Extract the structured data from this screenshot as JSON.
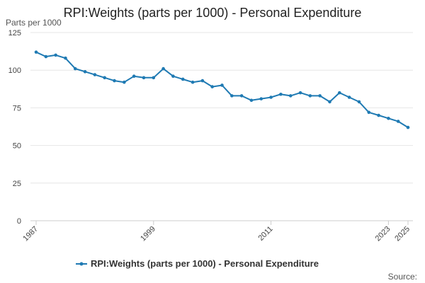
{
  "chart_data": {
    "type": "line",
    "title": "RPI:Weights (parts per 1000) - Personal Expenditure",
    "xlabel": "",
    "ylabel": "Parts per 1000",
    "ylim": [
      0,
      125
    ],
    "yticks": [
      0,
      25,
      50,
      75,
      100,
      125
    ],
    "xlim": [
      1987,
      2025
    ],
    "xticks": [
      1987,
      1999,
      2011,
      2023,
      2025
    ],
    "grid": true,
    "legend_position": "bottom",
    "source_label": "Source:",
    "colors": {
      "line": "#1f7ab3",
      "grid": "#e6e6e6",
      "axis": "#cccccc",
      "text": "#222222"
    },
    "series": [
      {
        "name": "RPI:Weights (parts per 1000) - Personal Expenditure",
        "x": [
          1987,
          1988,
          1989,
          1990,
          1991,
          1992,
          1993,
          1994,
          1995,
          1996,
          1997,
          1998,
          1999,
          2000,
          2001,
          2002,
          2003,
          2004,
          2005,
          2006,
          2007,
          2008,
          2009,
          2010,
          2011,
          2012,
          2013,
          2014,
          2015,
          2016,
          2017,
          2018,
          2019,
          2020,
          2021,
          2022,
          2023,
          2024,
          2025
        ],
        "values": [
          112,
          109,
          110,
          108,
          101,
          99,
          97,
          95,
          93,
          92,
          96,
          95,
          95,
          101,
          96,
          94,
          92,
          93,
          89,
          90,
          83,
          83,
          80,
          81,
          82,
          84,
          83,
          85,
          83,
          83,
          79,
          85,
          82,
          79,
          72,
          70,
          68,
          66,
          62
        ]
      }
    ]
  }
}
